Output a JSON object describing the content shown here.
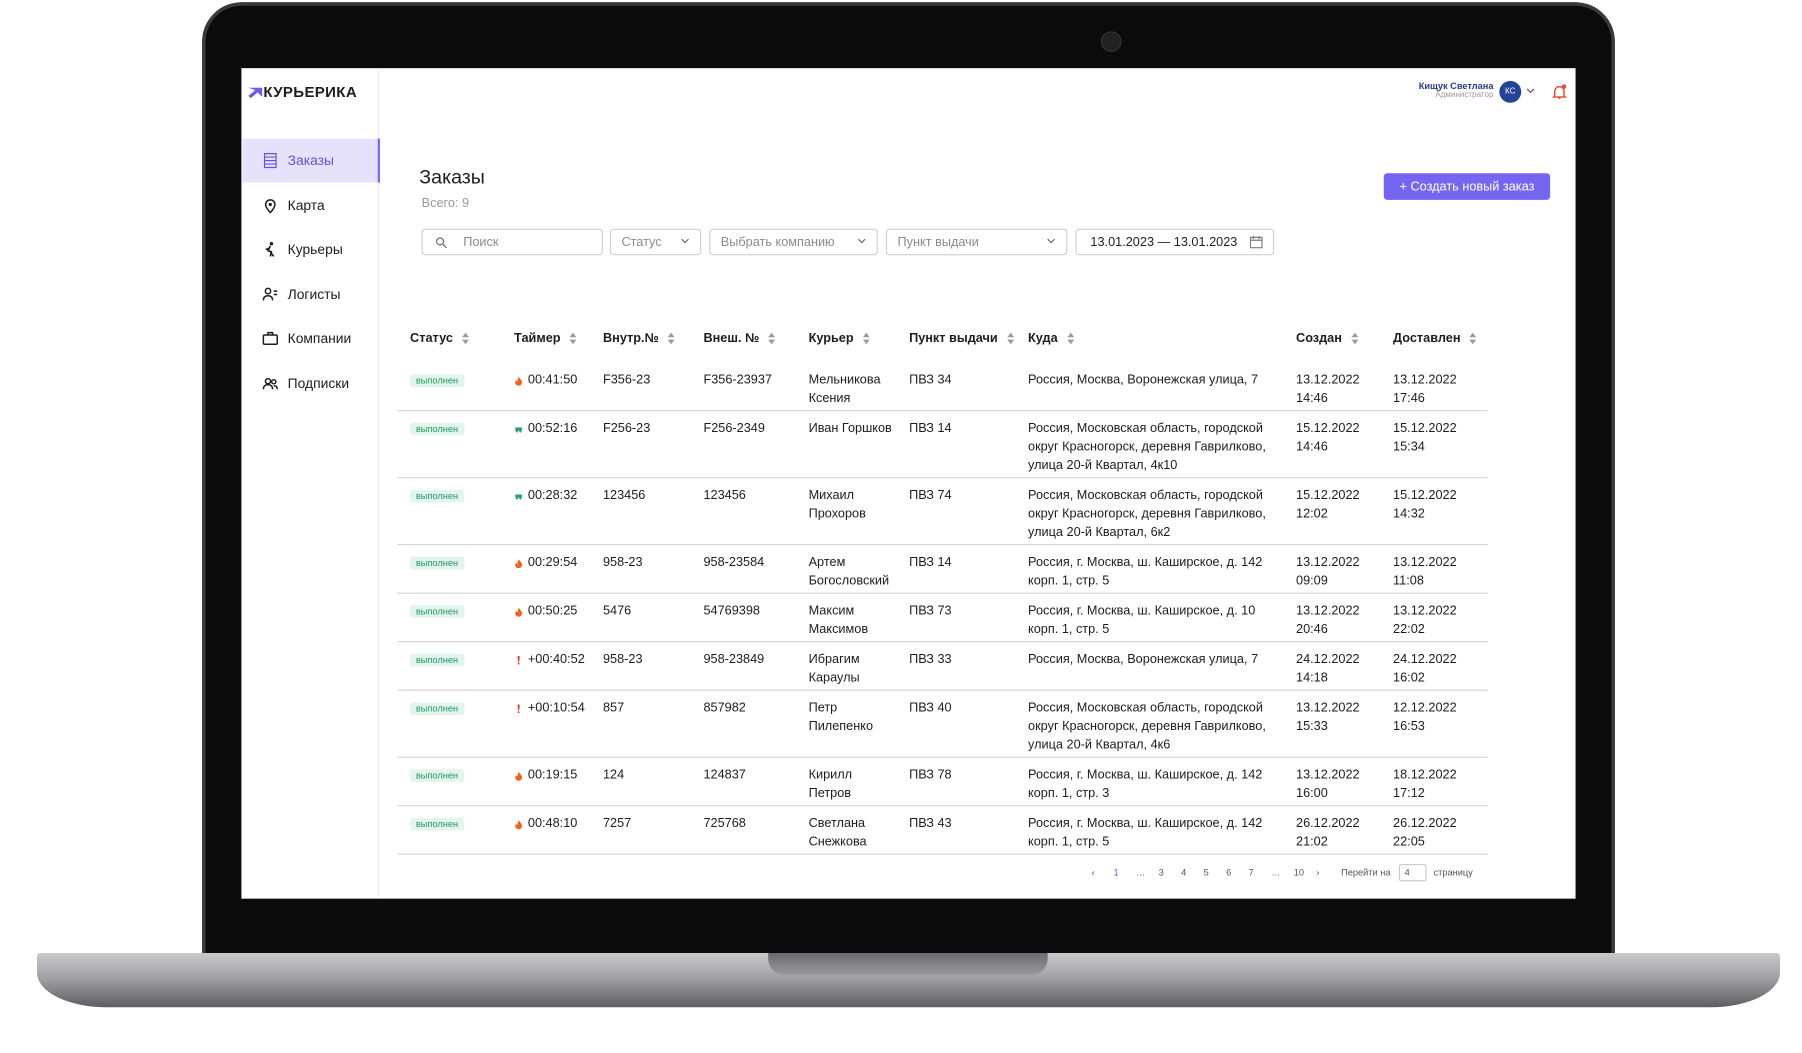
{
  "brand": "КУРЬЕРИКА",
  "nav": [
    "Заказы",
    "Карта",
    "Курьеры",
    "Логисты",
    "Компании",
    "Подписки"
  ],
  "user": {
    "name": "Кищук Светлана",
    "role": "Администратор",
    "initials": "КС"
  },
  "page": {
    "title": "Заказы",
    "total": "Всего: 9",
    "create_button": "+ Создать новый заказ"
  },
  "filters": {
    "search": "Поиск",
    "status": "Статус",
    "company": "Выбрать компанию",
    "point": "Пункт выдачи",
    "dates": "13.01.2023 — 13.01.2023"
  },
  "table": {
    "headers": [
      "Статус",
      "Таймер",
      "Внутр.№",
      "Внеш. №",
      "Курьер",
      "Пункт выдачи",
      "Куда",
      "Создан",
      "Доставлен"
    ],
    "rows": [
      {
        "status": "выполнен",
        "icon": "fire",
        "timer": "00:41:50",
        "inner": "F356-23",
        "outer": "F356-23937",
        "courier": "Мельникова Ксения",
        "point": "ПВЗ 34",
        "to": "Россия, Москва, Воронежская улица, 7",
        "created": "13.12.2022 14:46",
        "delivered": "13.12.2022 17:46"
      },
      {
        "status": "выполнен",
        "icon": "car",
        "timer": "00:52:16",
        "inner": "F256-23",
        "outer": "F256-2349",
        "courier": "Иван Горшков",
        "point": "ПВЗ 14",
        "to": "Россия, Московская область, городской округ Красногорск, деревня Гаврилково, улица 20-й Квартал, 4к10",
        "created": "15.12.2022 14:46",
        "delivered": "15.12.2022 15:34"
      },
      {
        "status": "выполнен",
        "icon": "car",
        "timer": "00:28:32",
        "inner": "123456",
        "outer": "123456",
        "courier": "Михаил Прохоров",
        "point": "ПВЗ 74",
        "to": "Россия, Московская область, городской округ Красногорск, деревня Гаврилково, улица 20-й Квартал, 6к2",
        "created": "15.12.2022 12:02",
        "delivered": "15.12.2022 14:32"
      },
      {
        "status": "выполнен",
        "icon": "fire",
        "timer": "00:29:54",
        "inner": "958-23",
        "outer": "958-23584",
        "courier": "Артем Богословский",
        "point": "ПВЗ 14",
        "to": "Россия, г. Москва, ш. Каширское, д. 142 корп. 1, стр. 5",
        "created": "13.12.2022 09:09",
        "delivered": "13.12.2022 11:08"
      },
      {
        "status": "выполнен",
        "icon": "fire",
        "timer": "00:50:25",
        "inner": "5476",
        "outer": "54769398",
        "courier": "Максим Максимов",
        "point": "ПВЗ 73",
        "to": "Россия, г. Москва, ш. Каширское, д. 10 корп. 1, стр. 5",
        "created": "13.12.2022 20:46",
        "delivered": "13.12.2022 22:02"
      },
      {
        "status": "выполнен",
        "icon": "alert",
        "timer": "+00:40:52",
        "inner": "958-23",
        "outer": "958-23849",
        "courier": "Ибрагим Караулы",
        "point": "ПВЗ 33",
        "to": "Россия, Москва, Воронежская улица, 7",
        "created": "24.12.2022 14:18",
        "delivered": "24.12.2022 16:02"
      },
      {
        "status": "выполнен",
        "icon": "alert",
        "timer": "+00:10:54",
        "inner": "857",
        "outer": "857982",
        "courier": "Петр Пилепенко",
        "point": "ПВЗ 40",
        "to": "Россия, Московская область, городской округ Красногорск, деревня Гаврилково, улица 20-й Квартал, 4к6",
        "created": "13.12.2022 15:33",
        "delivered": "12.12.2022 16:53"
      },
      {
        "status": "выполнен",
        "icon": "fire",
        "timer": "00:19:15",
        "inner": "124",
        "outer": "124837",
        "courier": "Кирилл Петров",
        "point": "ПВЗ 78",
        "to": "Россия, г. Москва, ш. Каширское, д. 142 корп. 1, стр. 3",
        "created": "13.12.2022 16:00",
        "delivered": "18.12.2022 17:12"
      },
      {
        "status": "выполнен",
        "icon": "fire",
        "timer": "00:48:10",
        "inner": "7257",
        "outer": "725768",
        "courier": "Светлана Снежкова",
        "point": "ПВЗ 43",
        "to": "Россия, г. Москва, ш. Каширское, д. 142 корп. 1, стр. 5",
        "created": "26.12.2022 21:02",
        "delivered": "26.12.2022 22:05"
      }
    ]
  },
  "pagination": {
    "pages": [
      "1",
      "…",
      "3",
      "4",
      "5",
      "6",
      "7",
      "…",
      "10"
    ],
    "current": 0,
    "goto_label": "Перейти на",
    "goto_value": "4",
    "goto_suffix": "страницу"
  }
}
